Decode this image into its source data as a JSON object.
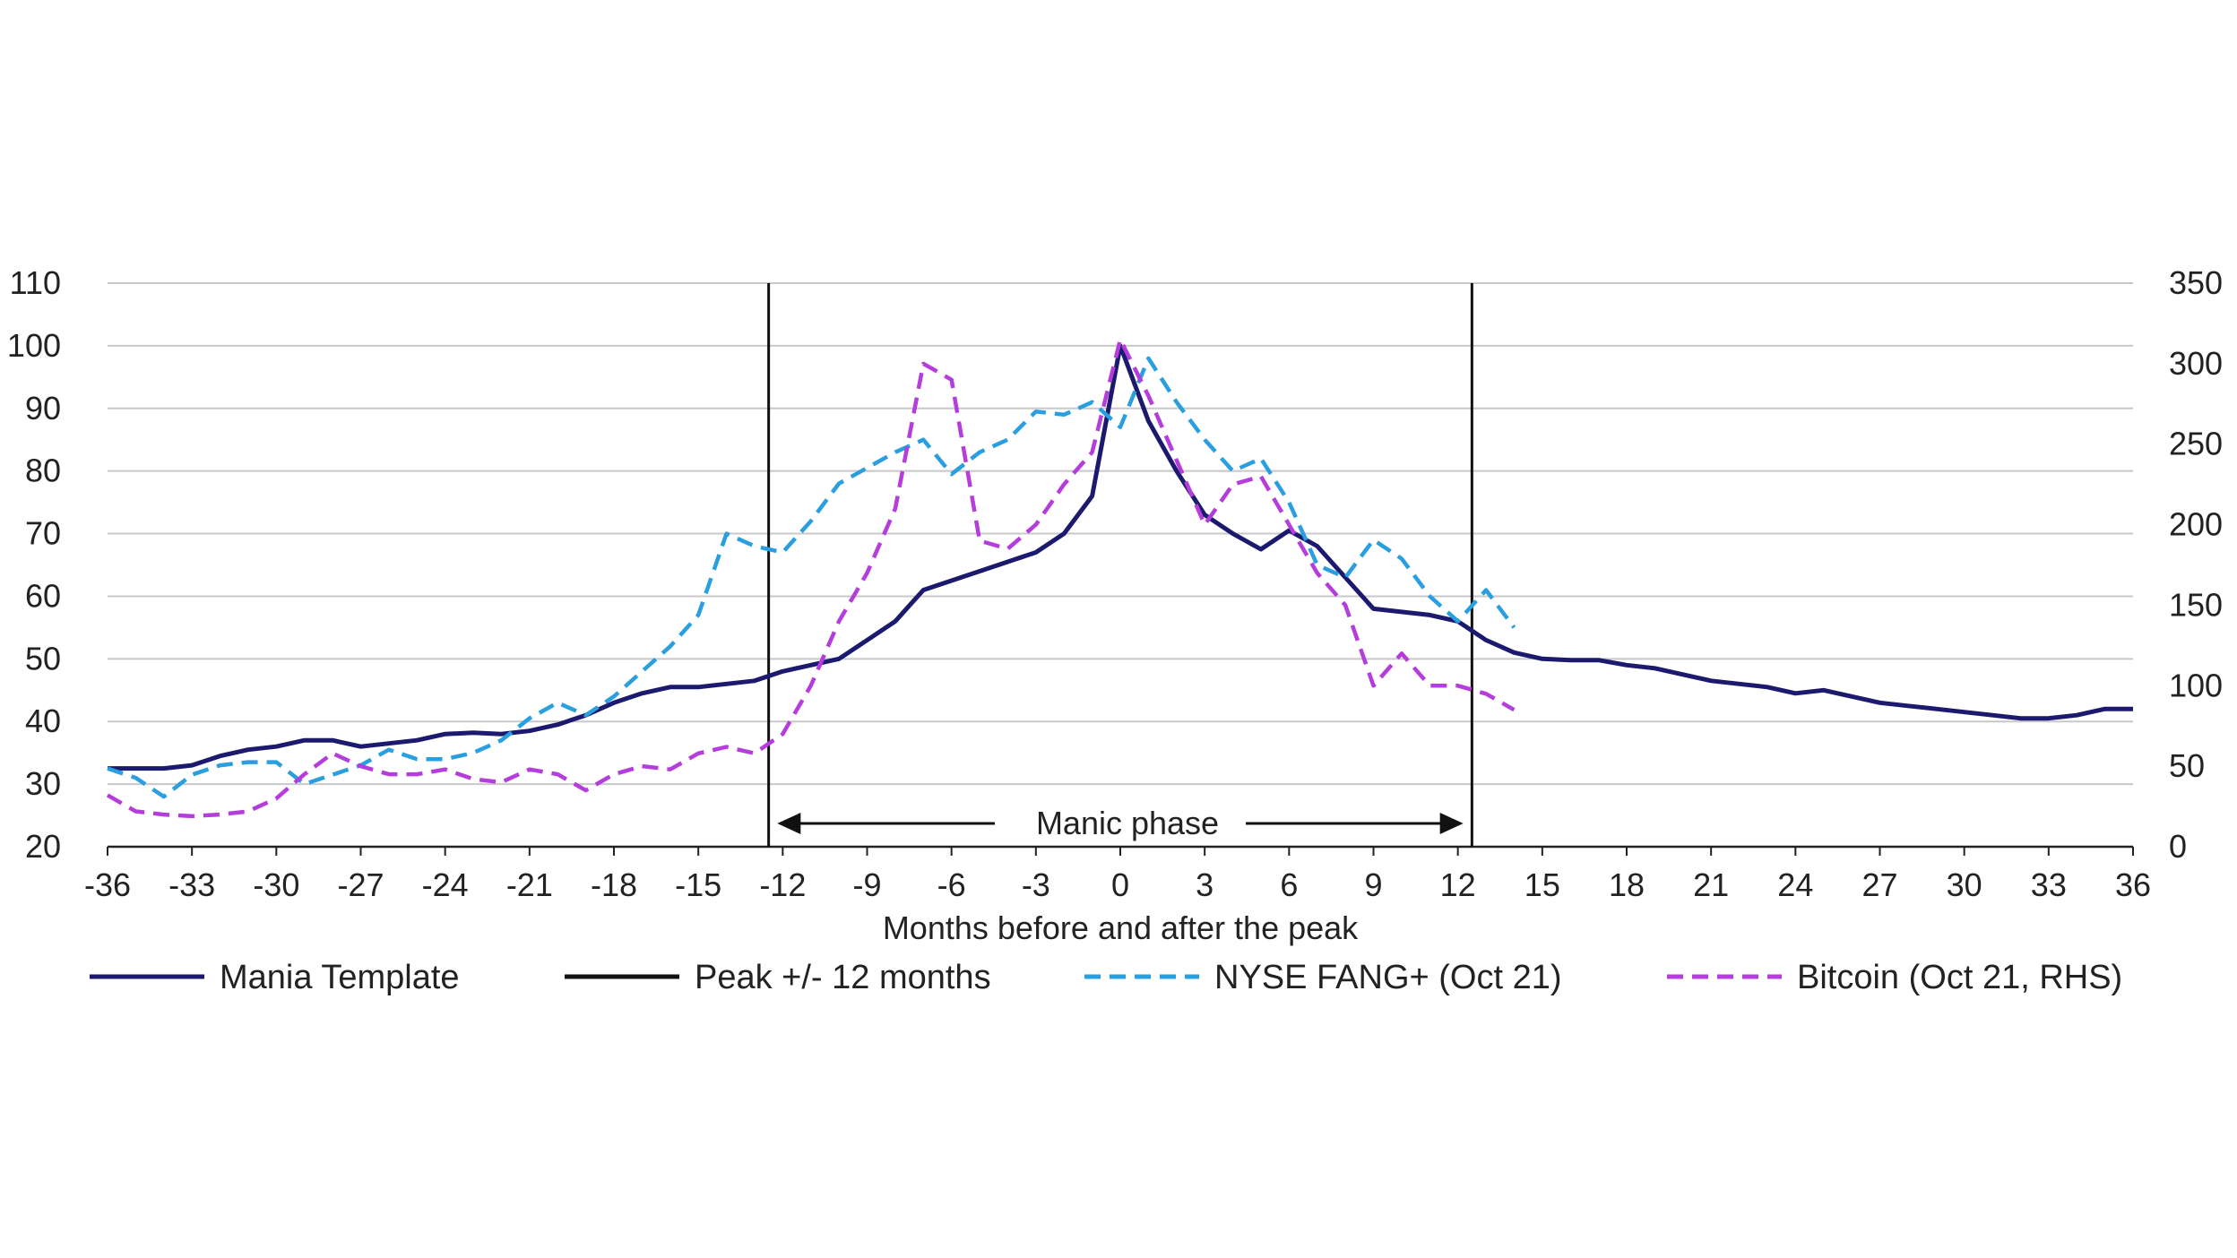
{
  "chart_data": {
    "type": "line",
    "xlabel": "Months before and after the peak",
    "x_range": [
      -36,
      36
    ],
    "x_ticks": [
      -36,
      -33,
      -30,
      -27,
      -24,
      -21,
      -18,
      -15,
      -12,
      -9,
      -6,
      -3,
      0,
      3,
      6,
      9,
      12,
      15,
      18,
      21,
      24,
      27,
      30,
      33,
      36
    ],
    "ylim_left": [
      20,
      110
    ],
    "y_ticks_left": [
      20,
      30,
      40,
      50,
      60,
      70,
      80,
      90,
      100,
      110
    ],
    "ylim_right": [
      0,
      350
    ],
    "y_ticks_right": [
      0,
      50,
      100,
      150,
      200,
      250,
      300,
      350
    ],
    "grid": "horizontal",
    "legend_position": "bottom",
    "vertical_markers": [
      -12.5,
      12.5
    ],
    "annotation": {
      "text": "Manic phase",
      "from": -12,
      "to": 12,
      "y": 24
    },
    "series": [
      {
        "name": "Mania Template",
        "axis": "left",
        "style": "solid",
        "color": "#1b1a6e",
        "points": [
          [
            -36,
            32.5
          ],
          [
            -35,
            32.5
          ],
          [
            -34,
            32.5
          ],
          [
            -33,
            33
          ],
          [
            -32,
            34.5
          ],
          [
            -31,
            35.5
          ],
          [
            -30,
            36
          ],
          [
            -29,
            37
          ],
          [
            -28,
            37
          ],
          [
            -27,
            36
          ],
          [
            -26,
            36.5
          ],
          [
            -25,
            37
          ],
          [
            -24,
            38
          ],
          [
            -23,
            38.2
          ],
          [
            -22,
            38
          ],
          [
            -21,
            38.5
          ],
          [
            -20,
            39.5
          ],
          [
            -19,
            41
          ],
          [
            -18,
            43
          ],
          [
            -17,
            44.5
          ],
          [
            -16,
            45.5
          ],
          [
            -15,
            45.5
          ],
          [
            -14,
            46
          ],
          [
            -13,
            46.5
          ],
          [
            -12,
            48
          ],
          [
            -11,
            49
          ],
          [
            -10,
            50
          ],
          [
            -9,
            53
          ],
          [
            -8,
            56
          ],
          [
            -7,
            61
          ],
          [
            -6,
            62.5
          ],
          [
            -5,
            64
          ],
          [
            -4,
            65.5
          ],
          [
            -3,
            67
          ],
          [
            -2,
            70
          ],
          [
            -1,
            76
          ],
          [
            0,
            100
          ],
          [
            1,
            88
          ],
          [
            2,
            80
          ],
          [
            3,
            73
          ],
          [
            4,
            70
          ],
          [
            5,
            67.5
          ],
          [
            6,
            70.5
          ],
          [
            7,
            68
          ],
          [
            8,
            63
          ],
          [
            9,
            58
          ],
          [
            10,
            57.5
          ],
          [
            11,
            57
          ],
          [
            12,
            56
          ],
          [
            13,
            53
          ],
          [
            14,
            51
          ],
          [
            15,
            50
          ],
          [
            16,
            49.8
          ],
          [
            17,
            49.8
          ],
          [
            18,
            49
          ],
          [
            19,
            48.5
          ],
          [
            20,
            47.5
          ],
          [
            21,
            46.5
          ],
          [
            22,
            46
          ],
          [
            23,
            45.5
          ],
          [
            24,
            44.5
          ],
          [
            25,
            45
          ],
          [
            26,
            44
          ],
          [
            27,
            43
          ],
          [
            28,
            42.5
          ],
          [
            29,
            42
          ],
          [
            30,
            41.5
          ],
          [
            31,
            41
          ],
          [
            32,
            40.5
          ],
          [
            33,
            40.5
          ],
          [
            34,
            41
          ],
          [
            35,
            42
          ],
          [
            36,
            42
          ]
        ]
      },
      {
        "name": "Peak +/- 12 months",
        "axis": "left",
        "style": "solid",
        "color": "#111111",
        "points": []
      },
      {
        "name": "NYSE FANG+ (Oct 21)",
        "axis": "left",
        "style": "dashed",
        "color": "#2a9fe0",
        "points": [
          [
            -36,
            32.5
          ],
          [
            -35,
            31
          ],
          [
            -34,
            28
          ],
          [
            -33,
            31.5
          ],
          [
            -32,
            33
          ],
          [
            -31,
            33.5
          ],
          [
            -30,
            33.5
          ],
          [
            -29,
            30
          ],
          [
            -28,
            31.5
          ],
          [
            -27,
            33
          ],
          [
            -26,
            35.5
          ],
          [
            -25,
            34
          ],
          [
            -24,
            34
          ],
          [
            -23,
            35
          ],
          [
            -22,
            37
          ],
          [
            -21,
            40.5
          ],
          [
            -20,
            43
          ],
          [
            -19,
            41
          ],
          [
            -18,
            44
          ],
          [
            -17,
            48
          ],
          [
            -16,
            52
          ],
          [
            -15,
            57
          ],
          [
            -14,
            70
          ],
          [
            -13,
            68
          ],
          [
            -12,
            67
          ],
          [
            -11,
            72
          ],
          [
            -10,
            78
          ],
          [
            -9,
            80.5
          ],
          [
            -8,
            83
          ],
          [
            -7,
            85
          ],
          [
            -6,
            79.5
          ],
          [
            -5,
            83
          ],
          [
            -4,
            85
          ],
          [
            -3,
            89.5
          ],
          [
            -2,
            89
          ],
          [
            -1,
            91
          ],
          [
            0,
            87
          ],
          [
            1,
            98
          ],
          [
            2,
            91
          ],
          [
            3,
            85
          ],
          [
            4,
            80
          ],
          [
            5,
            82
          ],
          [
            6,
            75
          ],
          [
            7,
            65
          ],
          [
            8,
            63
          ],
          [
            9,
            69
          ],
          [
            10,
            66
          ],
          [
            11,
            60
          ],
          [
            12,
            56
          ],
          [
            13,
            61
          ],
          [
            14,
            55
          ]
        ]
      },
      {
        "name": "Bitcoin (Oct 21, RHS)",
        "axis": "right",
        "style": "dashed",
        "color": "#b53ddb",
        "points": [
          [
            -36,
            32
          ],
          [
            -35,
            22
          ],
          [
            -34,
            20
          ],
          [
            -33,
            19
          ],
          [
            -32,
            20
          ],
          [
            -31,
            22
          ],
          [
            -30,
            30
          ],
          [
            -29,
            45
          ],
          [
            -28,
            58
          ],
          [
            -27,
            50
          ],
          [
            -26,
            45
          ],
          [
            -25,
            45
          ],
          [
            -24,
            48
          ],
          [
            -23,
            42
          ],
          [
            -22,
            40
          ],
          [
            -21,
            48
          ],
          [
            -20,
            45
          ],
          [
            -19,
            35
          ],
          [
            -18,
            45
          ],
          [
            -17,
            50
          ],
          [
            -16,
            48
          ],
          [
            -15,
            58
          ],
          [
            -14,
            62
          ],
          [
            -13,
            58
          ],
          [
            -12,
            70
          ],
          [
            -11,
            100
          ],
          [
            -10,
            140
          ],
          [
            -9,
            170
          ],
          [
            -8,
            210
          ],
          [
            -7,
            300
          ],
          [
            -6,
            290
          ],
          [
            -5,
            190
          ],
          [
            -4,
            185
          ],
          [
            -3,
            200
          ],
          [
            -2,
            225
          ],
          [
            -1,
            245
          ],
          [
            0,
            315
          ],
          [
            1,
            280
          ],
          [
            2,
            240
          ],
          [
            3,
            200
          ],
          [
            4,
            225
          ],
          [
            5,
            230
          ],
          [
            6,
            200
          ],
          [
            7,
            170
          ],
          [
            8,
            150
          ],
          [
            9,
            100
          ],
          [
            10,
            120
          ],
          [
            11,
            100
          ],
          [
            12,
            100
          ],
          [
            13,
            95
          ],
          [
            14,
            85
          ]
        ]
      }
    ]
  }
}
